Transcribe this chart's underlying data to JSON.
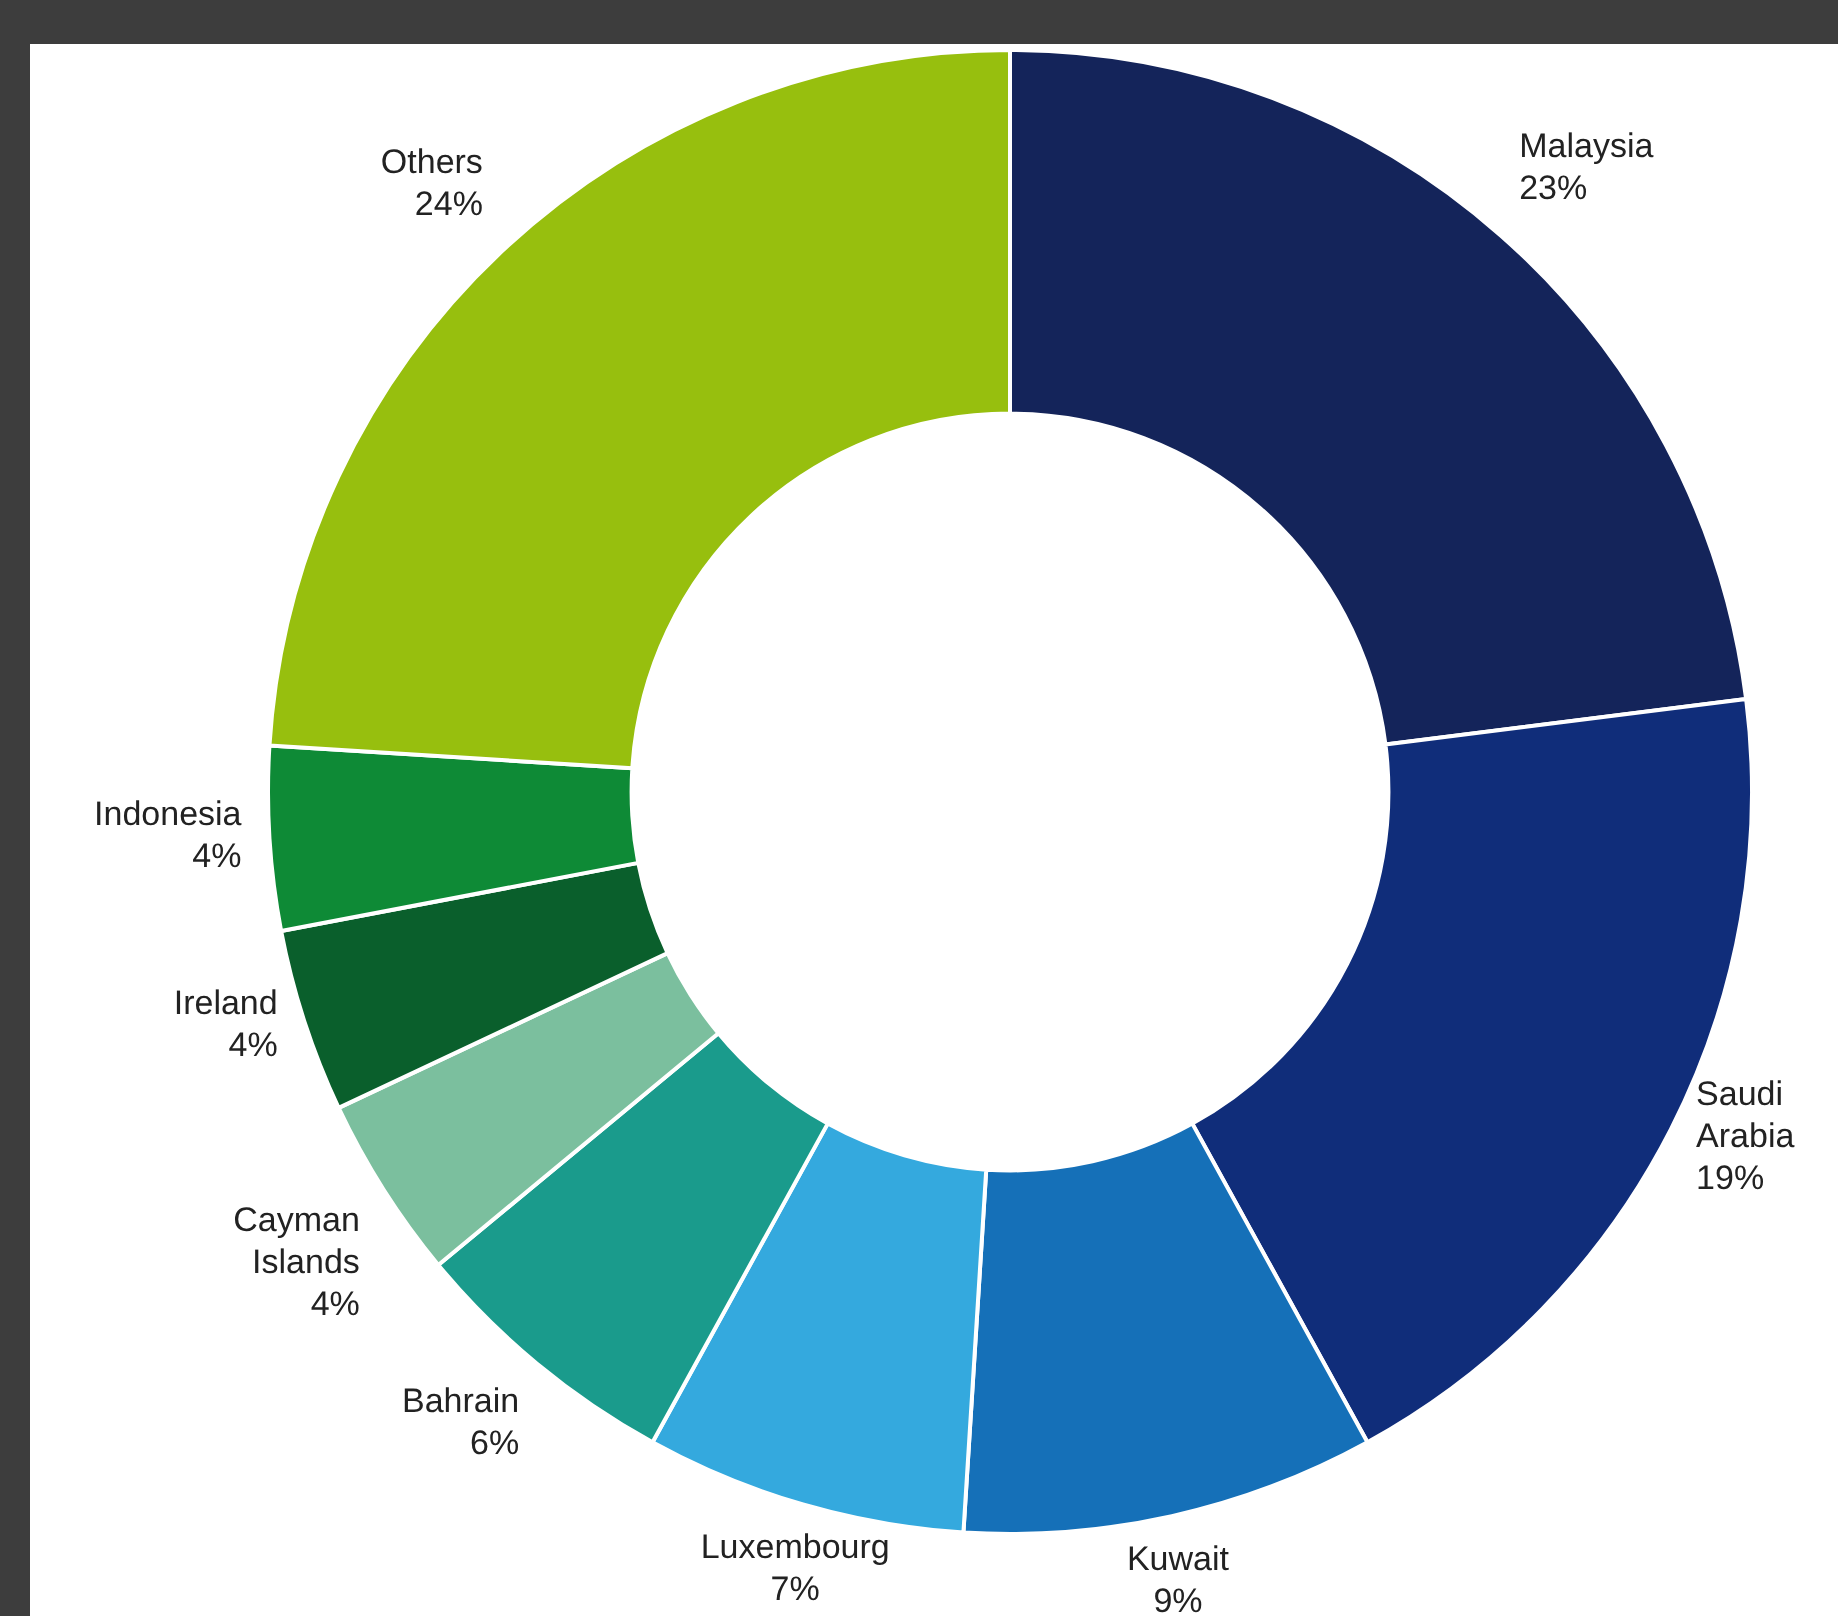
{
  "chart_data": {
    "type": "donut",
    "categories": [
      "Malaysia",
      "Saudi Arabia",
      "Kuwait",
      "Luxembourg",
      "Bahrain",
      "Cayman Islands",
      "Ireland",
      "Indonesia",
      "Others"
    ],
    "values": [
      23,
      19,
      9,
      7,
      6,
      4,
      4,
      4,
      24
    ],
    "value_labels": [
      "23%",
      "19%",
      "9%",
      "7%",
      "6%",
      "4%",
      "4%",
      "4%",
      "24%"
    ],
    "colors": [
      "#14245a",
      "#102d7a",
      "#1570b8",
      "#34a9de",
      "#1a9b8c",
      "#7bbf9e",
      "#0a5f2c",
      "#0e8a36",
      "#97bf0e"
    ],
    "legend": false
  }
}
